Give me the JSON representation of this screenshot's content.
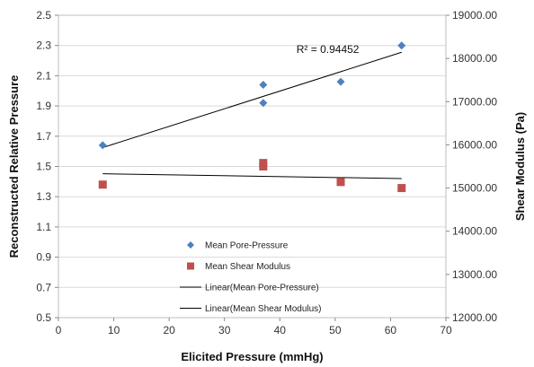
{
  "chart_data": {
    "type": "scatter",
    "xlabel": "Elicited Pressure (mmHg)",
    "ylabel_left": "Reconstructed Relative Pressure",
    "ylabel_right": "Shear Modulus (Pa)",
    "xlim": [
      0,
      70
    ],
    "xticks": [
      0,
      10,
      20,
      30,
      40,
      50,
      60,
      70
    ],
    "ylim_left": [
      0.5,
      2.5
    ],
    "yticks_left": [
      "0.5",
      "0.7",
      "0.9",
      "1.1",
      "1.3",
      "1.5",
      "1.7",
      "1.9",
      "2.1",
      "2.3",
      "2.5"
    ],
    "ylim_right": [
      12000,
      19000
    ],
    "yticks_right": [
      "12000.00",
      "13000.00",
      "14000.00",
      "15000.00",
      "16000.00",
      "17000.00",
      "18000.00",
      "19000.00"
    ],
    "grid": "horizontal",
    "series": [
      {
        "name": "Mean Pore-Pressure",
        "axis": "left",
        "marker": "diamond",
        "color": "#4f81bd",
        "points": [
          [
            8,
            1.64
          ],
          [
            37,
            2.04
          ],
          [
            37,
            1.92
          ],
          [
            51,
            2.06
          ],
          [
            62,
            2.3
          ]
        ]
      },
      {
        "name": "Mean Shear Modulus",
        "axis": "right",
        "marker": "square",
        "color": "#c0504d",
        "points": [
          [
            8,
            15080
          ],
          [
            37,
            15580
          ],
          [
            37,
            15500
          ],
          [
            51,
            15140
          ],
          [
            62,
            15000
          ]
        ]
      }
    ],
    "trendlines": [
      {
        "name": "Linear(Mean Pore-Pressure)",
        "axis": "left",
        "color": "#000000",
        "from": [
          8,
          1.625
        ],
        "to": [
          62,
          2.255
        ]
      },
      {
        "name": "Linear(Mean Shear Modulus)",
        "axis": "right",
        "color": "#000000",
        "from": [
          8,
          15330
        ],
        "to": [
          62,
          15220
        ]
      }
    ],
    "annotations": [
      {
        "text": "R² = 0.94452",
        "x": 43,
        "y": 2.25,
        "axis": "left"
      }
    ],
    "legend": {
      "placement": "bottom-center",
      "entries": [
        {
          "label": "Mean Pore-Pressure",
          "symbol": "diamond",
          "color": "#4f81bd"
        },
        {
          "label": "Mean Shear Modulus",
          "symbol": "square",
          "color": "#c0504d"
        },
        {
          "label": "Linear(Mean Pore-Pressure)",
          "symbol": "line",
          "color": "#000000"
        },
        {
          "label": "Linear(Mean Shear Modulus)",
          "symbol": "line",
          "color": "#000000"
        }
      ]
    }
  }
}
